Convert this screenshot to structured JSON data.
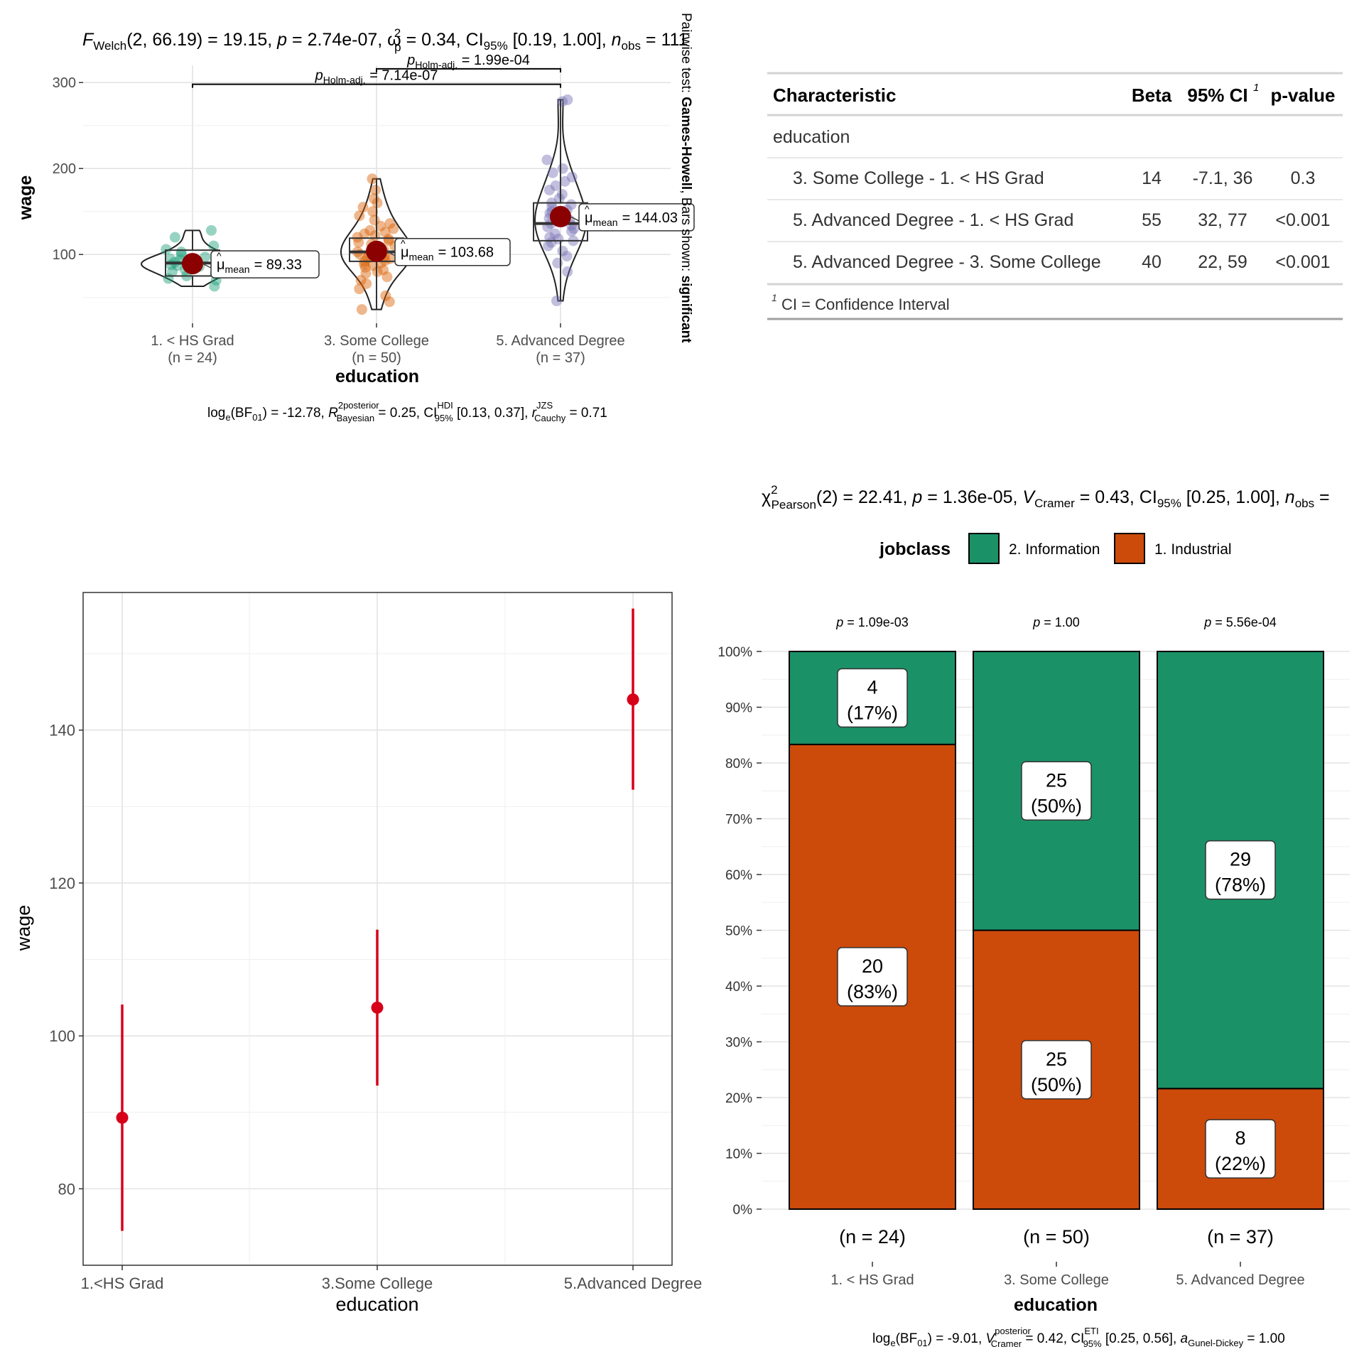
{
  "chart_data": [
    {
      "type": "violin-box-scatter",
      "title": {
        "prefix": "F",
        "prefix_sub": "Welch",
        "body": "(2, 66.19) = 19.15, ",
        "p_label": "p",
        "p_value": " = 2.74e-07, ",
        "effect": "ω",
        "effect_sup": "2",
        "effect_sub": "p",
        "effect_value": " = 0.34, CI",
        "ci_sub": "95%",
        "ci_value": " [0.19, 1.00], ",
        "n_label": "n",
        "n_sub": "obs",
        "n_value": " = 111"
      },
      "subtitle": {
        "lead": "log",
        "lead_sub": "e",
        "bf": "(BF",
        "bf_sub": "01",
        "bf_value": ") = -12.78, ",
        "r2": "R",
        "r2_sup": "2",
        "r2_sup2": "posterior",
        "r2_sub": "Bayesian",
        "r2_value": " = 0.25, CI",
        "ci_sup": "HDI",
        "ci_sub": "95%",
        "ci_value": " [0.13, 0.37], ",
        "r": "r",
        "r_sup": "JZS",
        "r_sub": "Cauchy",
        "r_value": " = 0.71"
      },
      "side_caption": {
        "lead": "Pairwise test: ",
        "test": "Games-Howell",
        "mid": ", Bars shown: ",
        "shown": "significant"
      },
      "xlabel": "education",
      "ylabel": "wage",
      "ylim": [
        20,
        320
      ],
      "yticks": [
        100,
        200,
        300
      ],
      "groups": [
        {
          "name": "1. < HS Grad",
          "n": "(n = 24)",
          "mean": 89.33,
          "mean_label": "= 89.33",
          "color": "#1b9e77",
          "q1": 75,
          "median": 90,
          "q3": 105,
          "lo": 63,
          "hi": 128,
          "points": [
            63,
            70,
            72,
            75,
            78,
            80,
            82,
            84,
            86,
            87,
            88,
            89,
            90,
            91,
            92,
            94,
            95,
            97,
            100,
            103,
            106,
            110,
            120,
            128
          ]
        },
        {
          "name": "3. Some College",
          "n": "(n = 50)",
          "mean": 103.68,
          "mean_label": "= 103.68",
          "color": "#d95f02",
          "q1": 92,
          "median": 103,
          "q3": 119,
          "lo": 36,
          "hi": 188,
          "points": [
            36,
            45,
            52,
            60,
            66,
            70,
            74,
            78,
            80,
            82,
            85,
            87,
            89,
            90,
            92,
            93,
            95,
            96,
            98,
            99,
            100,
            101,
            102,
            103,
            104,
            105,
            106,
            107,
            108,
            110,
            112,
            114,
            116,
            118,
            120,
            122,
            124,
            126,
            128,
            130,
            133,
            136,
            140,
            145,
            150,
            155,
            160,
            165,
            175,
            188
          ]
        },
        {
          "name": "5. Advanced Degree",
          "n": "(n = 37)",
          "mean": 144.03,
          "mean_label": "= 144.03",
          "color": "#7570b3",
          "q1": 116,
          "median": 136,
          "q3": 160,
          "lo": 46,
          "hi": 280,
          "points": [
            46,
            80,
            90,
            98,
            104,
            110,
            114,
            116,
            118,
            120,
            124,
            127,
            130,
            132,
            134,
            136,
            138,
            140,
            142,
            145,
            148,
            150,
            152,
            155,
            158,
            160,
            165,
            170,
            175,
            180,
            185,
            190,
            195,
            200,
            210,
            278,
            280
          ]
        }
      ],
      "comparisons": [
        {
          "label_p": "p",
          "label_sub": "Holm-adj.",
          "label_value": " = 1.99e-04",
          "from": 1,
          "to": 2,
          "y": 316
        },
        {
          "label_p": "p",
          "label_sub": "Holm-adj.",
          "label_value": " = 7.14e-07",
          "from": 0,
          "to": 2,
          "y": 298
        }
      ],
      "mean_symbol": "μ",
      "mean_sub": "mean"
    },
    {
      "type": "table",
      "columns": [
        "Characteristic",
        "Beta",
        "95% CI",
        "p-value"
      ],
      "ci_footnote_mark": "1",
      "section": "education",
      "rows": [
        [
          "3. Some College - 1. < HS Grad",
          "14",
          "-7.1, 36",
          "0.3"
        ],
        [
          "5. Advanced Degree - 1. < HS Grad",
          "55",
          "32, 77",
          "<0.001"
        ],
        [
          "5. Advanced Degree - 3. Some College",
          "40",
          "22, 59",
          "<0.001"
        ]
      ],
      "footnote_mark": "1",
      "footnote": "CI = Confidence Interval"
    },
    {
      "type": "scatter",
      "categories": [
        "1.<HS Grad",
        "3.Some College",
        "5.Advanced Degree"
      ],
      "xlabel": "education",
      "ylabel": "wage",
      "ylim": [
        70,
        158
      ],
      "yticks": [
        80,
        100,
        120,
        140
      ],
      "color": "#d7001a",
      "values": [
        89.3,
        103.7,
        144.0
      ],
      "lower": [
        74.5,
        93.5,
        132.2
      ],
      "upper": [
        104.1,
        113.9,
        155.9
      ]
    },
    {
      "type": "bar",
      "stacked": "percent",
      "title": {
        "chi": "χ",
        "chi_sup": "2",
        "chi_sub": "Pearson",
        "body": "(2) = 22.41, ",
        "p_label": "p",
        "p_value": " = 1.36e-05, ",
        "v": "V",
        "v_sub": "Cramer",
        "v_value": " = 0.43, CI",
        "ci_sub": "95%",
        "ci_value": " [0.25, 1.00], ",
        "n_label": "n",
        "n_sub": "obs",
        "n_value": " ="
      },
      "legend": {
        "title": "jobclass",
        "items": [
          {
            "name": "2. Information",
            "color": "#1b9168"
          },
          {
            "name": "1. Industrial",
            "color": "#cc4a0a"
          }
        ]
      },
      "categories": [
        "1. < HS Grad",
        "3. Some College",
        "5. Advanced Degree"
      ],
      "n_labels": [
        "(n = 24)",
        "(n = 50)",
        "(n = 37)"
      ],
      "p_labels": [
        "p",
        "p",
        "p"
      ],
      "p_values": [
        " = 1.09e-03",
        " = 1.00",
        " = 5.56e-04"
      ],
      "series": [
        {
          "name": "1. Industrial",
          "counts": [
            20,
            25,
            8
          ],
          "pct_labels": [
            "(83%)",
            "(50%)",
            "(22%)"
          ],
          "values": [
            83.33,
            50,
            21.62
          ]
        },
        {
          "name": "2. Information",
          "counts": [
            4,
            25,
            29
          ],
          "pct_labels": [
            "(17%)",
            "(50%)",
            "(78%)"
          ],
          "values": [
            16.67,
            50,
            78.38
          ]
        }
      ],
      "yticks": [
        "0%",
        "10%",
        "20%",
        "30%",
        "40%",
        "50%",
        "60%",
        "70%",
        "80%",
        "90%",
        "100%"
      ],
      "ylim": [
        0,
        100
      ],
      "xlabel": "education",
      "subtitle": {
        "lead": "log",
        "lead_sub": "e",
        "bf": "(BF",
        "bf_sub": "01",
        "bf_value": ") = -9.01, ",
        "v": "V",
        "v_sup": "posterior",
        "v_sub": "Cramer",
        "v_value": " = 0.42, CI",
        "ci_sup": "ETI",
        "ci_sub": "95%",
        "ci_value": " [0.25, 0.56], ",
        "a": "a",
        "a_sub": "Gunel-Dickey",
        "a_value": " = 1.00"
      }
    }
  ]
}
